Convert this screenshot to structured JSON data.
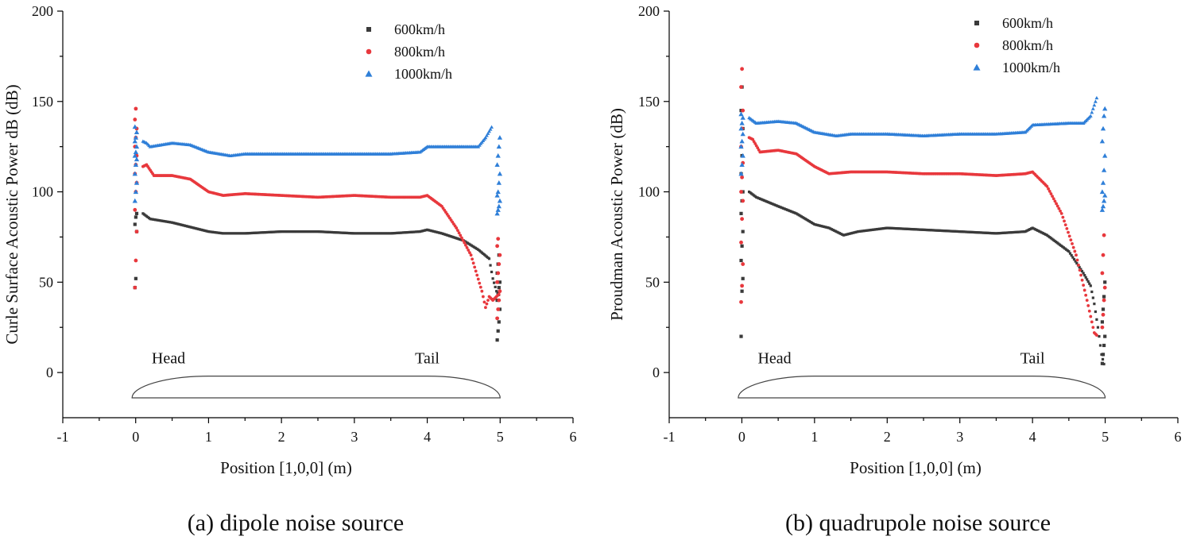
{
  "chart_data": [
    {
      "type": "scatter",
      "panel": "a",
      "caption": "(a) dipole noise source",
      "xlabel": "Position [1,0,0] (m)",
      "ylabel": "Curle Surface Acoustic Power dB (dB)",
      "xlim": [
        -1,
        6
      ],
      "ylim": [
        -25,
        200
      ],
      "xticks": [
        -1,
        0,
        1,
        2,
        3,
        4,
        5,
        6
      ],
      "yticks": [
        0,
        50,
        100,
        150,
        200
      ],
      "legend_position": "top-right",
      "annotations": [
        {
          "text": "Head",
          "x": 0.45,
          "y": 5
        },
        {
          "text": "Tail",
          "x": 4.0,
          "y": 5
        }
      ],
      "series": [
        {
          "name": "600km/h",
          "color": "#3a3a3a",
          "marker": "square",
          "points": [
            [
              0.1,
              88
            ],
            [
              0.2,
              85
            ],
            [
              0.5,
              83
            ],
            [
              1.0,
              78
            ],
            [
              1.2,
              77
            ],
            [
              1.5,
              77
            ],
            [
              2.0,
              78
            ],
            [
              2.5,
              78
            ],
            [
              3.0,
              77
            ],
            [
              3.5,
              77
            ],
            [
              3.9,
              78
            ],
            [
              4.0,
              79
            ],
            [
              4.2,
              77
            ],
            [
              4.5,
              73
            ],
            [
              4.7,
              68
            ],
            [
              4.85,
              63
            ],
            [
              4.9,
              52
            ],
            [
              4.95,
              45
            ],
            [
              5.0,
              42
            ]
          ],
          "scatter_x0": [
            47,
            52,
            78,
            82,
            86,
            88
          ],
          "scatter_x5": [
            18,
            23,
            28,
            35,
            40,
            44,
            47,
            50,
            55,
            60,
            65
          ]
        },
        {
          "name": "800km/h",
          "color": "#e8383d",
          "marker": "circle",
          "points": [
            [
              0.1,
              114
            ],
            [
              0.15,
              115
            ],
            [
              0.25,
              109
            ],
            [
              0.5,
              109
            ],
            [
              0.75,
              107
            ],
            [
              1.0,
              100
            ],
            [
              1.2,
              98
            ],
            [
              1.5,
              99
            ],
            [
              2.0,
              98
            ],
            [
              2.5,
              97
            ],
            [
              3.0,
              98
            ],
            [
              3.5,
              97
            ],
            [
              3.9,
              97
            ],
            [
              4.0,
              98
            ],
            [
              4.2,
              92
            ],
            [
              4.4,
              80
            ],
            [
              4.6,
              65
            ],
            [
              4.75,
              45
            ],
            [
              4.8,
              36
            ],
            [
              4.85,
              42
            ],
            [
              4.9,
              40
            ],
            [
              5.0,
              44
            ]
          ],
          "scatter_x0": [
            47,
            62,
            78,
            90,
            100,
            105,
            110,
            115,
            120,
            125,
            130,
            135,
            140,
            146
          ],
          "scatter_x5": [
            30,
            35,
            40,
            45,
            50,
            55,
            60,
            65,
            70,
            74
          ]
        },
        {
          "name": "1000km/h",
          "color": "#2f7fd8",
          "marker": "triangle",
          "points": [
            [
              0.1,
              128
            ],
            [
              0.15,
              127
            ],
            [
              0.2,
              125
            ],
            [
              0.5,
              127
            ],
            [
              0.75,
              126
            ],
            [
              1.0,
              122
            ],
            [
              1.3,
              120
            ],
            [
              1.5,
              121
            ],
            [
              2.0,
              121
            ],
            [
              2.5,
              121
            ],
            [
              3.0,
              121
            ],
            [
              3.5,
              121
            ],
            [
              3.9,
              122
            ],
            [
              4.0,
              125
            ],
            [
              4.5,
              125
            ],
            [
              4.7,
              125
            ],
            [
              4.8,
              130
            ],
            [
              4.9,
              137
            ]
          ],
          "scatter_x0": [
            95,
            100,
            105,
            110,
            115,
            118,
            120,
            122,
            125,
            128,
            130,
            133,
            136
          ],
          "scatter_x5": [
            88,
            90,
            92,
            95,
            98,
            100,
            105,
            110,
            115,
            120,
            125,
            130
          ]
        }
      ]
    },
    {
      "type": "scatter",
      "panel": "b",
      "caption": "(b) quadrupole noise source",
      "xlabel": "Position [1,0,0] (m)",
      "ylabel": "Proudman Acoustic Power (dB)",
      "xlim": [
        -1,
        6
      ],
      "ylim": [
        -25,
        200
      ],
      "xticks": [
        -1,
        0,
        1,
        2,
        3,
        4,
        5,
        6
      ],
      "yticks": [
        0,
        50,
        100,
        150,
        200
      ],
      "legend_position": "top-right",
      "annotations": [
        {
          "text": "Head",
          "x": 0.45,
          "y": 5
        },
        {
          "text": "Tail",
          "x": 4.0,
          "y": 5
        }
      ],
      "series": [
        {
          "name": "600km/h",
          "color": "#3a3a3a",
          "marker": "square",
          "points": [
            [
              0.1,
              100
            ],
            [
              0.2,
              97
            ],
            [
              0.5,
              92
            ],
            [
              0.75,
              88
            ],
            [
              1.0,
              82
            ],
            [
              1.2,
              80
            ],
            [
              1.4,
              76
            ],
            [
              1.6,
              78
            ],
            [
              2.0,
              80
            ],
            [
              2.5,
              79
            ],
            [
              3.0,
              78
            ],
            [
              3.5,
              77
            ],
            [
              3.9,
              78
            ],
            [
              4.0,
              80
            ],
            [
              4.2,
              76
            ],
            [
              4.5,
              67
            ],
            [
              4.7,
              55
            ],
            [
              4.8,
              48
            ],
            [
              4.85,
              38
            ],
            [
              4.9,
              25
            ],
            [
              4.95,
              10
            ],
            [
              5.0,
              2
            ]
          ],
          "scatter_x0": [
            20,
            45,
            52,
            62,
            70,
            78,
            88,
            95,
            100,
            110,
            120,
            135,
            145,
            158
          ],
          "scatter_x5": [
            5,
            10,
            15,
            20,
            28,
            35,
            42,
            50
          ]
        },
        {
          "name": "800km/h",
          "color": "#e8383d",
          "marker": "circle",
          "points": [
            [
              0.1,
              130
            ],
            [
              0.15,
              129
            ],
            [
              0.25,
              122
            ],
            [
              0.5,
              123
            ],
            [
              0.75,
              121
            ],
            [
              1.0,
              114
            ],
            [
              1.2,
              110
            ],
            [
              1.5,
              111
            ],
            [
              2.0,
              111
            ],
            [
              2.5,
              110
            ],
            [
              3.0,
              110
            ],
            [
              3.5,
              109
            ],
            [
              3.9,
              110
            ],
            [
              4.0,
              111
            ],
            [
              4.2,
              103
            ],
            [
              4.4,
              88
            ],
            [
              4.6,
              65
            ],
            [
              4.75,
              40
            ],
            [
              4.85,
              22
            ],
            [
              4.9,
              20
            ]
          ],
          "scatter_x0": [
            39,
            48,
            60,
            72,
            85,
            95,
            100,
            108,
            116,
            125,
            135,
            145,
            158,
            168
          ],
          "scatter_x5": [
            25,
            32,
            40,
            47,
            55,
            65,
            76
          ]
        },
        {
          "name": "1000km/h",
          "color": "#2f7fd8",
          "marker": "triangle",
          "points": [
            [
              0.1,
              141
            ],
            [
              0.2,
              138
            ],
            [
              0.5,
              139
            ],
            [
              0.75,
              138
            ],
            [
              1.0,
              133
            ],
            [
              1.3,
              131
            ],
            [
              1.5,
              132
            ],
            [
              2.0,
              132
            ],
            [
              2.5,
              131
            ],
            [
              3.0,
              132
            ],
            [
              3.5,
              132
            ],
            [
              3.9,
              133
            ],
            [
              4.0,
              137
            ],
            [
              4.5,
              138
            ],
            [
              4.7,
              138
            ],
            [
              4.8,
              142
            ],
            [
              4.9,
              154
            ]
          ],
          "scatter_x0": [
            110,
            115,
            120,
            125,
            128,
            132,
            135,
            138,
            141,
            143
          ],
          "scatter_x5": [
            90,
            92,
            95,
            98,
            100,
            105,
            112,
            120,
            128,
            135,
            142,
            146
          ]
        }
      ]
    }
  ]
}
